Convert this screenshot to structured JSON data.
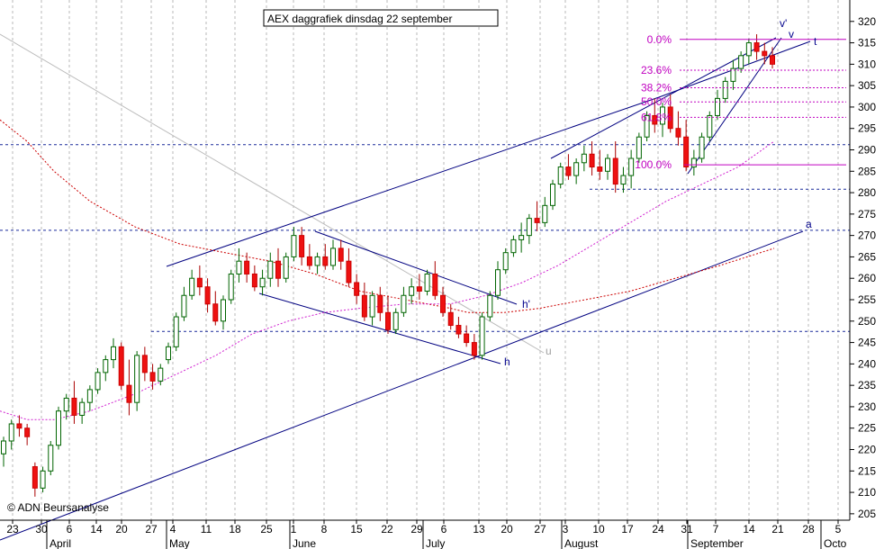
{
  "chart_data": {
    "type": "candlestick",
    "title": "AEX daggrafiek dinsdag 22 september",
    "copyright": "© ADN Beursanalyse",
    "ylim": [
      200,
      325
    ],
    "yticks": [
      205,
      210,
      215,
      220,
      225,
      230,
      235,
      240,
      245,
      250,
      255,
      260,
      265,
      270,
      275,
      280,
      285,
      290,
      295,
      300,
      305,
      310,
      315,
      320
    ],
    "x_ticks": [
      "23",
      "30",
      "6",
      "14",
      "20",
      "27",
      "4",
      "11",
      "18",
      "25",
      "1",
      "8",
      "15",
      "22",
      "29",
      "6",
      "13",
      "20",
      "27",
      "3",
      "10",
      "17",
      "24",
      "31",
      "7",
      "14",
      "21",
      "28",
      "5"
    ],
    "months": [
      "April",
      "May",
      "June",
      "July",
      "August",
      "September",
      "Octo"
    ],
    "fib_levels": [
      {
        "label": "0.0%",
        "value": 315.8
      },
      {
        "label": "23.6%",
        "value": 308.6
      },
      {
        "label": "38.2%",
        "value": 304.5
      },
      {
        "label": "50.0%",
        "value": 301.2
      },
      {
        "label": "61.8%",
        "value": 297.6
      },
      {
        "label": "100.0%",
        "value": 286.5
      }
    ],
    "horizontal_levels": [
      291.2,
      280.8,
      271.2,
      247.6
    ],
    "line_labels": [
      "v'",
      "v",
      "t",
      "a",
      "h'",
      "h",
      "u"
    ],
    "series": [
      {
        "name": "AEX daily",
        "style": "candles",
        "values": [
          [
            219,
            223,
            216,
            222
          ],
          [
            222,
            227,
            220,
            226
          ],
          [
            226,
            228,
            223,
            225
          ],
          [
            225,
            226,
            221,
            223
          ],
          [
            216,
            217,
            209,
            211
          ],
          [
            211,
            216,
            210,
            215
          ],
          [
            215,
            222,
            214,
            221
          ],
          [
            221,
            230,
            220,
            229
          ],
          [
            229,
            233,
            227,
            232
          ],
          [
            232,
            236,
            226,
            228
          ],
          [
            228,
            232,
            226,
            231
          ],
          [
            231,
            235,
            229,
            234
          ],
          [
            234,
            239,
            233,
            238
          ],
          [
            238,
            242,
            236,
            241
          ],
          [
            241,
            246,
            239,
            244
          ],
          [
            244,
            245,
            234,
            235
          ],
          [
            235,
            241,
            228,
            231
          ],
          [
            231,
            243,
            229,
            242
          ],
          [
            242,
            244,
            236,
            238
          ],
          [
            238,
            240,
            234,
            236
          ],
          [
            236,
            240,
            235,
            239
          ],
          [
            241,
            245,
            240,
            244
          ],
          [
            244,
            252,
            243,
            251
          ],
          [
            251,
            258,
            250,
            256
          ],
          [
            256,
            262,
            255,
            260
          ],
          [
            260,
            263,
            256,
            258
          ],
          [
            258,
            260,
            252,
            254
          ],
          [
            254,
            257,
            249,
            250
          ],
          [
            250,
            256,
            248,
            255
          ],
          [
            255,
            262,
            254,
            261
          ],
          [
            261,
            267,
            259,
            264
          ],
          [
            264,
            266,
            259,
            261
          ],
          [
            261,
            263,
            257,
            258
          ],
          [
            258,
            262,
            256,
            260
          ],
          [
            260,
            266,
            258,
            264
          ],
          [
            264,
            267,
            258,
            260
          ],
          [
            260,
            266,
            259,
            265
          ],
          [
            265,
            272,
            264,
            270
          ],
          [
            270,
            272,
            263,
            265
          ],
          [
            265,
            268,
            262,
            263
          ],
          [
            263,
            266,
            261,
            265
          ],
          [
            265,
            268,
            262,
            263
          ],
          [
            263,
            269,
            262,
            267
          ],
          [
            267,
            269,
            262,
            264
          ],
          [
            264,
            267,
            258,
            259
          ],
          [
            259,
            261,
            254,
            256
          ],
          [
            256,
            259,
            250,
            251
          ],
          [
            251,
            257,
            249,
            256
          ],
          [
            256,
            258,
            250,
            252
          ],
          [
            252,
            256,
            247,
            248
          ],
          [
            248,
            253,
            247,
            252
          ],
          [
            252,
            258,
            251,
            256
          ],
          [
            256,
            260,
            254,
            258
          ],
          [
            258,
            261,
            255,
            257
          ],
          [
            257,
            262,
            256,
            261
          ],
          [
            261,
            264,
            255,
            256
          ],
          [
            256,
            258,
            251,
            252
          ],
          [
            252,
            254,
            248,
            249
          ],
          [
            249,
            251,
            246,
            247
          ],
          [
            247,
            249,
            244,
            245
          ],
          [
            245,
            247,
            241,
            242
          ],
          [
            242,
            252,
            241,
            251
          ],
          [
            251,
            257,
            250,
            256
          ],
          [
            256,
            264,
            255,
            262
          ],
          [
            262,
            267,
            261,
            266
          ],
          [
            266,
            270,
            265,
            269
          ],
          [
            269,
            273,
            266,
            270
          ],
          [
            270,
            275,
            268,
            274
          ],
          [
            274,
            278,
            271,
            273
          ],
          [
            273,
            279,
            272,
            277
          ],
          [
            277,
            283,
            276,
            282
          ],
          [
            282,
            287,
            281,
            286
          ],
          [
            286,
            289,
            283,
            284
          ],
          [
            284,
            288,
            282,
            287
          ],
          [
            287,
            291,
            285,
            289
          ],
          [
            289,
            292,
            284,
            286
          ],
          [
            286,
            290,
            283,
            285
          ],
          [
            285,
            289,
            283,
            288
          ],
          [
            288,
            292,
            280,
            282
          ],
          [
            282,
            286,
            280,
            284
          ],
          [
            284,
            290,
            281,
            288
          ],
          [
            288,
            294,
            287,
            293
          ],
          [
            293,
            299,
            292,
            298
          ],
          [
            298,
            302,
            294,
            296
          ],
          [
            296,
            301,
            293,
            300
          ],
          [
            300,
            303,
            294,
            295
          ],
          [
            295,
            299,
            291,
            293
          ],
          [
            293,
            297,
            285,
            286
          ],
          [
            286,
            290,
            284,
            288
          ],
          [
            288,
            294,
            287,
            293
          ],
          [
            293,
            299,
            292,
            298
          ],
          [
            298,
            304,
            297,
            302
          ],
          [
            302,
            307,
            301,
            306
          ],
          [
            306,
            311,
            304,
            309
          ],
          [
            309,
            313,
            308,
            312
          ],
          [
            312,
            316,
            310,
            315
          ],
          [
            315,
            317,
            311,
            313
          ],
          [
            313,
            315,
            310,
            312
          ],
          [
            312,
            314,
            309,
            310
          ]
        ]
      },
      {
        "name": "MA long",
        "style": "red-dashed",
        "values": [
          [
            0,
            297
          ],
          [
            30,
            292
          ],
          [
            60,
            285
          ],
          [
            100,
            278
          ],
          [
            150,
            272
          ],
          [
            200,
            268
          ],
          [
            250,
            266
          ],
          [
            300,
            264
          ],
          [
            350,
            261
          ],
          [
            400,
            257
          ],
          [
            450,
            255
          ],
          [
            500,
            253
          ],
          [
            520,
            252
          ],
          [
            560,
            252
          ],
          [
            600,
            253
          ],
          [
            650,
            255
          ],
          [
            700,
            257
          ],
          [
            750,
            260
          ],
          [
            800,
            263
          ],
          [
            830,
            265
          ],
          [
            860,
            267
          ]
        ]
      },
      {
        "name": "MA mid",
        "style": "magenta-dashed",
        "values": [
          [
            0,
            229
          ],
          [
            30,
            227
          ],
          [
            60,
            227
          ],
          [
            100,
            229
          ],
          [
            150,
            233
          ],
          [
            200,
            238
          ],
          [
            240,
            242
          ],
          [
            280,
            247
          ],
          [
            320,
            250
          ],
          [
            360,
            252
          ],
          [
            400,
            253
          ],
          [
            450,
            254
          ],
          [
            500,
            254
          ],
          [
            540,
            256
          ],
          [
            580,
            259
          ],
          [
            620,
            263
          ],
          [
            660,
            268
          ],
          [
            700,
            273
          ],
          [
            740,
            278
          ],
          [
            780,
            282
          ],
          [
            820,
            286
          ],
          [
            860,
            292
          ]
        ]
      }
    ]
  }
}
